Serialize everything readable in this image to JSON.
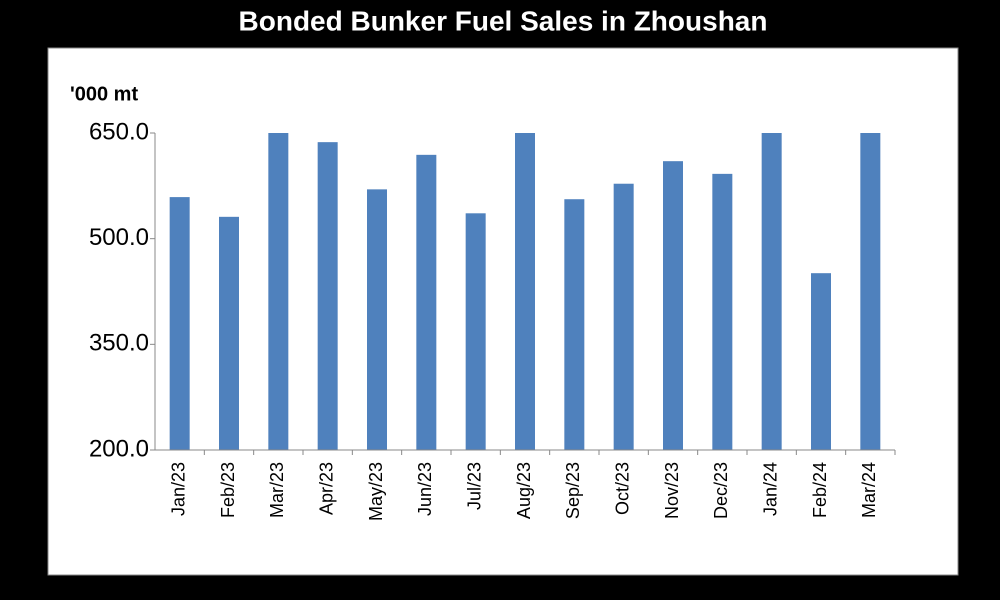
{
  "chart_data": {
    "type": "bar",
    "title": "Bonded Bunker Fuel Sales in Zhoushan",
    "y_label": "'000 mt",
    "categories": [
      "Jan/23",
      "Feb/23",
      "Mar/23",
      "Apr/23",
      "May/23",
      "Jun/23",
      "Jul/23",
      "Aug/23",
      "Sep/23",
      "Oct/23",
      "Nov/23",
      "Dec/23",
      "Jan/24",
      "Feb/24",
      "Mar/24"
    ],
    "values": [
      559,
      531,
      650,
      637,
      570,
      619,
      536,
      650,
      556,
      578,
      610,
      592,
      650,
      451,
      650
    ],
    "color": "#4f81bd",
    "ylim": [
      200,
      650
    ],
    "yticks": [
      {
        "value": 200,
        "label": "200.0"
      },
      {
        "value": 350,
        "label": "350.0"
      },
      {
        "value": 500,
        "label": "500.0"
      },
      {
        "value": 650,
        "label": "650.0"
      }
    ],
    "grid": false
  }
}
